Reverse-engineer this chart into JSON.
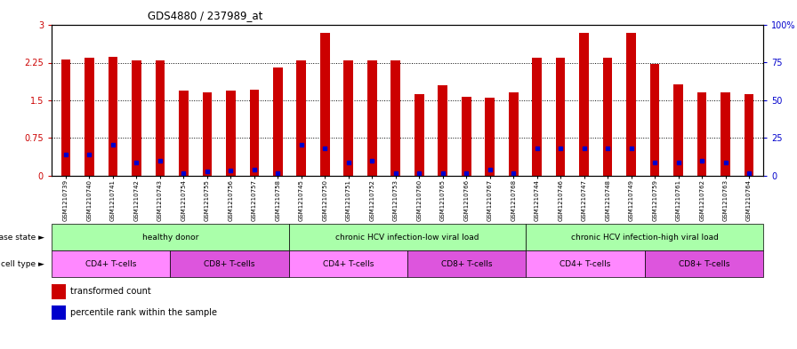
{
  "title": "GDS4880 / 237989_at",
  "samples": [
    "GSM1210739",
    "GSM1210740",
    "GSM1210741",
    "GSM1210742",
    "GSM1210743",
    "GSM1210754",
    "GSM1210755",
    "GSM1210756",
    "GSM1210757",
    "GSM1210758",
    "GSM1210745",
    "GSM1210750",
    "GSM1210751",
    "GSM1210752",
    "GSM1210753",
    "GSM1210760",
    "GSM1210765",
    "GSM1210766",
    "GSM1210767",
    "GSM1210768",
    "GSM1210744",
    "GSM1210746",
    "GSM1210747",
    "GSM1210748",
    "GSM1210749",
    "GSM1210759",
    "GSM1210761",
    "GSM1210762",
    "GSM1210763",
    "GSM1210764"
  ],
  "bar_values": [
    2.32,
    2.35,
    2.37,
    2.3,
    2.3,
    1.7,
    1.65,
    1.7,
    1.72,
    2.15,
    2.3,
    2.85,
    2.3,
    2.3,
    2.3,
    1.62,
    1.8,
    1.57,
    1.55,
    1.65,
    2.35,
    2.35,
    2.85,
    2.35,
    2.85,
    2.22,
    1.82,
    1.65,
    1.65,
    1.62
  ],
  "blue_values": [
    0.42,
    0.42,
    0.62,
    0.27,
    0.3,
    0.05,
    0.08,
    0.1,
    0.12,
    0.05,
    0.62,
    0.55,
    0.27,
    0.3,
    0.05,
    0.05,
    0.05,
    0.05,
    0.12,
    0.05,
    0.55,
    0.55,
    0.55,
    0.55,
    0.55,
    0.27,
    0.27,
    0.3,
    0.27,
    0.05
  ],
  "ylim": [
    0,
    3
  ],
  "yticks_left": [
    0,
    0.75,
    1.5,
    2.25,
    3
  ],
  "ytick_labels_left": [
    "0",
    "0.75",
    "1.5",
    "2.25",
    "3"
  ],
  "yticks_right": [
    0,
    25,
    50,
    75,
    100
  ],
  "ytick_labels_right": [
    "0",
    "25",
    "50",
    "75",
    "100%"
  ],
  "bar_color": "#cc0000",
  "blue_color": "#0000cc",
  "disease_groups": [
    {
      "label": "healthy donor",
      "start": 0,
      "end": 10,
      "color": "#aaffaa"
    },
    {
      "label": "chronic HCV infection-low viral load",
      "start": 10,
      "end": 20,
      "color": "#aaffaa"
    },
    {
      "label": "chronic HCV infection-high viral load",
      "start": 20,
      "end": 30,
      "color": "#aaffaa"
    }
  ],
  "cell_groups": [
    {
      "label": "CD4+ T-cells",
      "start": 0,
      "end": 5,
      "color": "#ff88ff"
    },
    {
      "label": "CD8+ T-cells",
      "start": 5,
      "end": 10,
      "color": "#dd55dd"
    },
    {
      "label": "CD4+ T-cells",
      "start": 10,
      "end": 15,
      "color": "#ff88ff"
    },
    {
      "label": "CD8+ T-cells",
      "start": 15,
      "end": 20,
      "color": "#dd55dd"
    },
    {
      "label": "CD4+ T-cells",
      "start": 20,
      "end": 25,
      "color": "#ff88ff"
    },
    {
      "label": "CD8+ T-cells",
      "start": 25,
      "end": 30,
      "color": "#dd55dd"
    }
  ],
  "disease_state_label": "disease state",
  "cell_type_label": "cell type",
  "legend_items": [
    {
      "label": "transformed count",
      "color": "#cc0000"
    },
    {
      "label": "percentile rank within the sample",
      "color": "#0000cc"
    }
  ]
}
